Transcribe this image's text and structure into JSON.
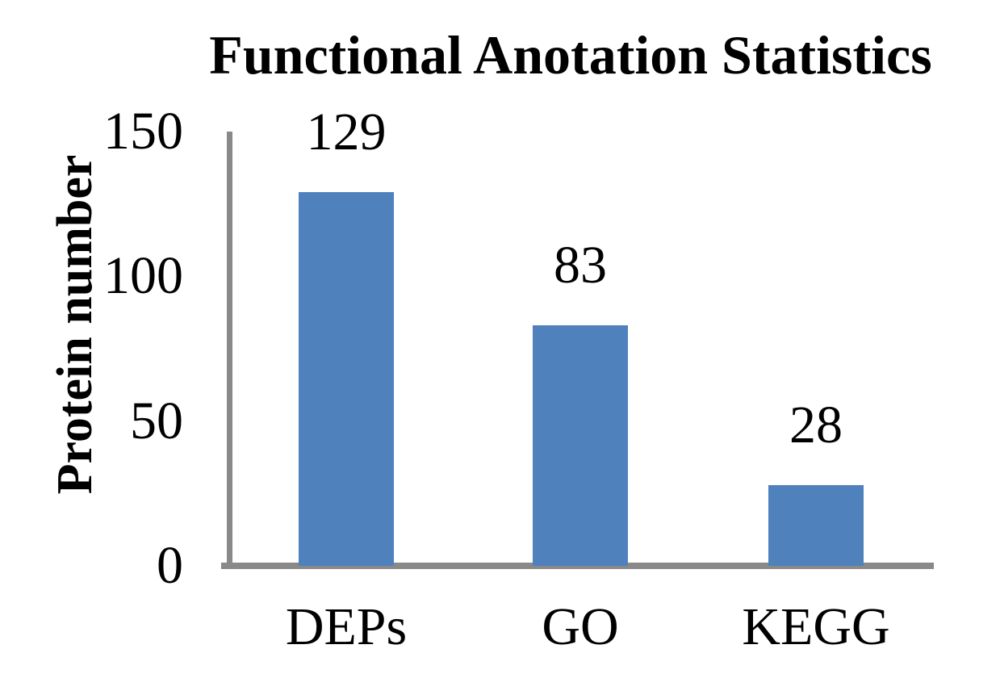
{
  "chart_data": {
    "type": "bar",
    "title": "Functional Anotation Statistics",
    "xlabel": "",
    "ylabel": "Protein number",
    "categories": [
      "DEPs",
      "GO",
      "KEGG"
    ],
    "values": [
      129,
      83,
      28
    ],
    "data_labels": [
      "129",
      "83",
      "28"
    ],
    "yticks": [
      0,
      50,
      100,
      150
    ],
    "ylim": [
      0,
      150
    ],
    "grid": false,
    "legend": false,
    "colors": {
      "bar": "#4F81BD",
      "axis": "#898989",
      "text": "#000000",
      "background": "#FFFFFF"
    }
  }
}
